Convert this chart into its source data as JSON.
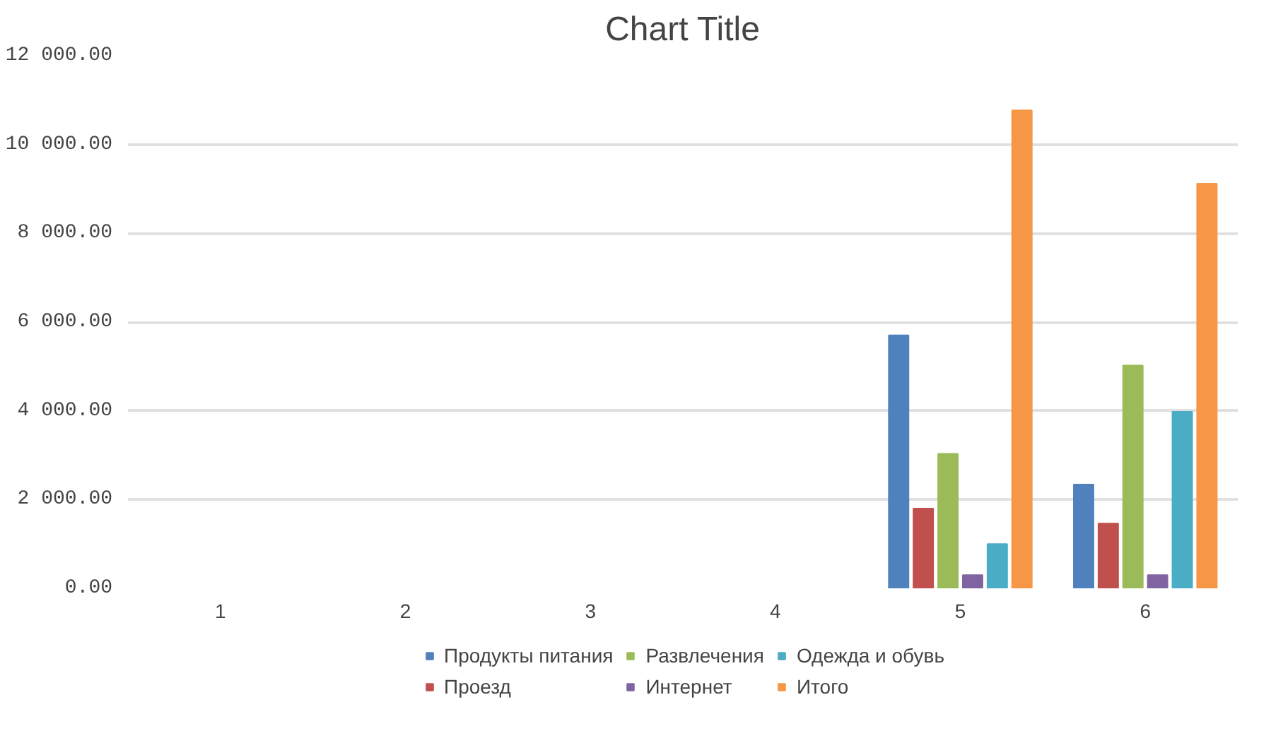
{
  "chart_data": {
    "type": "bar",
    "title": "Chart Title",
    "categories": [
      "1",
      "2",
      "3",
      "4",
      "5",
      "6"
    ],
    "series": [
      {
        "name": "Продукты питания",
        "color": "#4f81bd",
        "values": [
          null,
          null,
          null,
          null,
          5700,
          2340
        ]
      },
      {
        "name": "Проезд",
        "color": "#c0504d",
        "values": [
          null,
          null,
          null,
          null,
          1800,
          1460
        ]
      },
      {
        "name": "Развлечения",
        "color": "#9bbb59",
        "values": [
          null,
          null,
          null,
          null,
          3030,
          5020
        ]
      },
      {
        "name": "Интернет",
        "color": "#8064a2",
        "values": [
          null,
          null,
          null,
          null,
          300,
          300
        ]
      },
      {
        "name": "Одежда и обувь",
        "color": "#4bacc6",
        "values": [
          null,
          null,
          null,
          null,
          1000,
          3980
        ]
      },
      {
        "name": "Итого",
        "color": "#f79646",
        "values": [
          null,
          null,
          null,
          null,
          10770,
          9120
        ]
      }
    ],
    "ylim": [
      0,
      12000
    ],
    "yticks": [
      {
        "value": 0,
        "label": "0.00"
      },
      {
        "value": 2000,
        "label": "2 000.00"
      },
      {
        "value": 4000,
        "label": "4 000.00"
      },
      {
        "value": 6000,
        "label": "6 000.00"
      },
      {
        "value": 8000,
        "label": "8 000.00"
      },
      {
        "value": 10000,
        "label": "10 000.00"
      },
      {
        "value": 12000,
        "label": "12 000.00"
      }
    ],
    "grid": "y",
    "legend": "bottom"
  }
}
